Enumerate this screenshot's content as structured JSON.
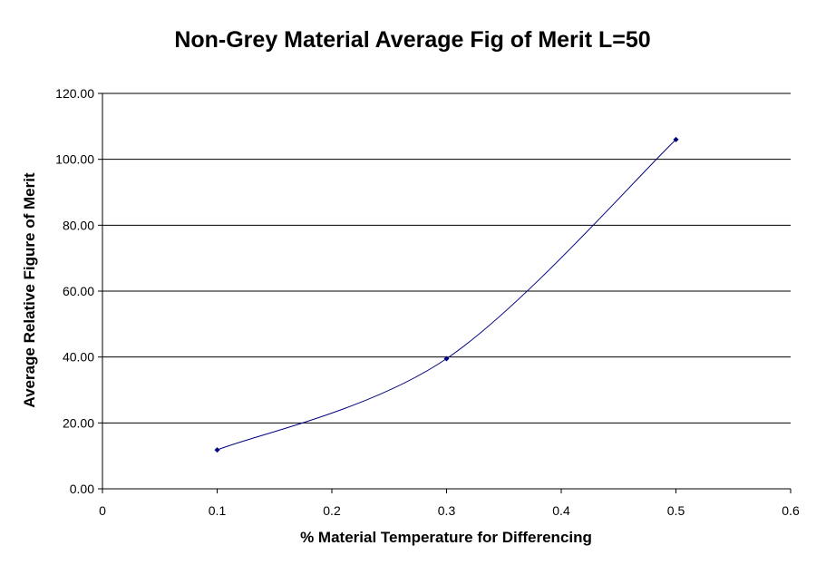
{
  "chart_data": {
    "type": "line",
    "title": "Non-Grey Material Average Fig of Merit L=50",
    "xlabel": "% Material Temperature for Differencing",
    "ylabel": "Average Relative Figure of Merit",
    "xlim": [
      0,
      0.6
    ],
    "ylim": [
      0,
      120
    ],
    "x_ticks": [
      "0",
      "0.1",
      "0.2",
      "0.3",
      "0.4",
      "0.5",
      "0.6"
    ],
    "y_ticks": [
      "0.00",
      "20.00",
      "40.00",
      "60.00",
      "80.00",
      "100.00",
      "120.00"
    ],
    "grid": "horizontal",
    "legend": "none",
    "line_color": "#000080",
    "marker_color": "#000080",
    "smooth": true,
    "series": [
      {
        "x": [
          0.1,
          0.3,
          0.5
        ],
        "y": [
          11.8,
          39.5,
          106.0
        ]
      }
    ]
  }
}
